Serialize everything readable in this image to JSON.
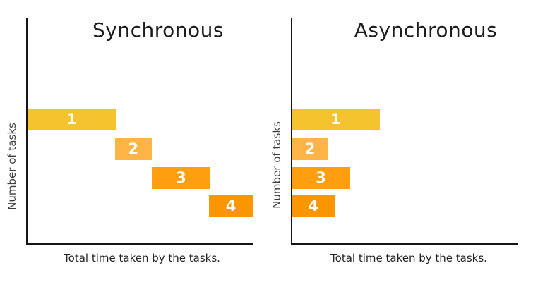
{
  "figure": {
    "background": "#ffffff",
    "axis_color": "#151515",
    "text_color": "#1c1c1c",
    "bar_label_color": "#ffffff"
  },
  "chart_data": [
    {
      "type": "bar",
      "subtype": "gantt-horizontal",
      "title": "Synchronous",
      "xlabel": "Total time taken by the tasks.",
      "ylabel": "Number of tasks",
      "x_axis": {
        "range_pct": [
          0,
          100
        ],
        "tick_labels": "none",
        "grid": false
      },
      "y_axis": {
        "tick_labels": "none",
        "grid": false
      },
      "note": "tasks run sequentially, each starts when previous ends",
      "bars": [
        {
          "label": "1",
          "start_pct": 0.3,
          "duration_pct": 38.8,
          "color": "#F5C32D"
        },
        {
          "label": "2",
          "start_pct": 38.9,
          "duration_pct": 16.2,
          "color": "#FFB545"
        },
        {
          "label": "3",
          "start_pct": 55.1,
          "duration_pct": 25.9,
          "color": "#FF9E0E"
        },
        {
          "label": "4",
          "start_pct": 80.4,
          "duration_pct": 19.3,
          "color": "#FA9600"
        }
      ]
    },
    {
      "type": "bar",
      "subtype": "gantt-horizontal",
      "title": "Asynchronous",
      "xlabel": "Total time taken by the tasks.",
      "ylabel": "Number of tasks",
      "x_axis": {
        "range_pct": [
          0,
          100
        ],
        "tick_labels": "none",
        "grid": false
      },
      "y_axis": {
        "tick_labels": "none",
        "grid": false
      },
      "note": "all tasks start at time zero and run concurrently",
      "bars": [
        {
          "label": "1",
          "start_pct": 0,
          "duration_pct": 38.8,
          "color": "#F5C32D"
        },
        {
          "label": "2",
          "start_pct": 0,
          "duration_pct": 16.2,
          "color": "#FFB545"
        },
        {
          "label": "3",
          "start_pct": 0,
          "duration_pct": 25.9,
          "color": "#FF9E0E"
        },
        {
          "label": "4",
          "start_pct": 0,
          "duration_pct": 19.3,
          "color": "#FA9600"
        }
      ]
    }
  ]
}
